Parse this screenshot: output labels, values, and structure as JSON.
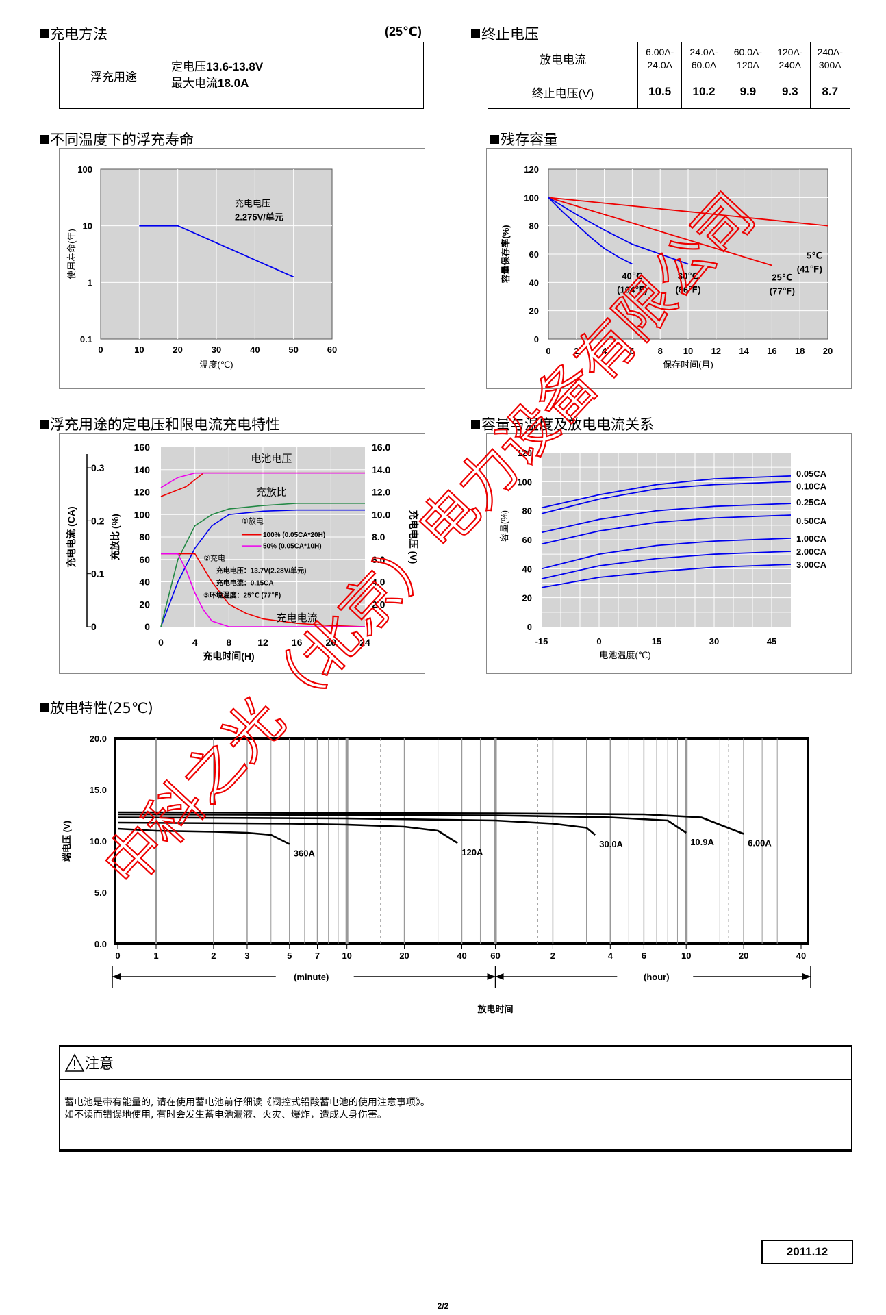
{
  "sections": {
    "charge_method": "充电方法",
    "charge_temp": "(25℃)",
    "end_voltage": "终止电压",
    "float_life": "不同温度下的浮充寿命",
    "residual": "残存容量",
    "charge_char": "浮充用途的定电压和限电流充电特性",
    "cap_temp": "容量与温度及放电电流关系",
    "discharge": "放电特性(25℃)"
  },
  "charge_table": {
    "use": "浮充用途",
    "voltage_label": "定电压",
    "voltage_value": "13.6-13.8V",
    "current_label": "最大电流",
    "current_value": "18.0A"
  },
  "end_voltage_table": {
    "row1_label": "放电电流",
    "row2_label": "终止电压(V)",
    "ranges": [
      [
        "6.00A-",
        "24.0A"
      ],
      [
        "24.0A-",
        "60.0A"
      ],
      [
        "60.0A-",
        "120A"
      ],
      [
        "120A-",
        "240A"
      ],
      [
        "240A-",
        "300A"
      ]
    ],
    "values": [
      "10.5",
      "10.2",
      "9.9",
      "9.3",
      "8.7"
    ]
  },
  "chart_data": [
    {
      "type": "line",
      "id": "float_life",
      "xlabel": "温度(℃)",
      "ylabel": "使用寿命(年)",
      "x_ticks": [
        "0",
        "10",
        "20",
        "30",
        "40",
        "50",
        "60"
      ],
      "y_ticks": [
        "0.1",
        "1",
        "10",
        "100"
      ],
      "xlim": [
        0,
        60
      ],
      "ylim": [
        0.1,
        100
      ],
      "y_scale": "log",
      "annotation": [
        "充电电压",
        "2.275V/单元"
      ],
      "series": [
        {
          "x": [
            10,
            20,
            50
          ],
          "y": [
            10,
            10,
            1.25
          ],
          "color": "#0000ee"
        }
      ]
    },
    {
      "type": "line",
      "id": "residual_capacity",
      "xlabel": "保存时间(月)",
      "ylabel": "容量保存率(%)",
      "x_ticks": [
        "0",
        "2",
        "4",
        "6",
        "8",
        "10",
        "12",
        "14",
        "16",
        "18",
        "20"
      ],
      "y_ticks": [
        "0",
        "20",
        "40",
        "60",
        "80",
        "100",
        "120"
      ],
      "xlim": [
        0,
        20
      ],
      "ylim": [
        0,
        120
      ],
      "series": [
        {
          "name": "5℃",
          "sub": "(41℉)",
          "x": [
            0,
            20
          ],
          "y": [
            100,
            80
          ],
          "color": "#ee0000"
        },
        {
          "name": "25℃",
          "sub": "(77℉)",
          "x": [
            0,
            16
          ],
          "y": [
            100,
            52
          ],
          "color": "#ee0000"
        },
        {
          "name": "30℃",
          "sub": "(86℉)",
          "x": [
            0,
            2,
            4,
            6,
            8,
            10
          ],
          "y": [
            100,
            88,
            77,
            67,
            60,
            53
          ],
          "color": "#0000ee"
        },
        {
          "name": "40℃",
          "sub": "(104℉)",
          "x": [
            0,
            1,
            2,
            3,
            4,
            5,
            6
          ],
          "y": [
            100,
            90,
            81,
            72,
            64,
            58,
            53
          ],
          "color": "#0000ee"
        }
      ]
    },
    {
      "type": "line",
      "id": "charge_characteristics",
      "xlabel": "充电时间(H)",
      "ylabel_left_outer": "充电电流 (CA)",
      "ylabel_left_inner": "充放比 (%)",
      "ylabel_right": "充电电压 (V)",
      "x_ticks": [
        "0",
        "4",
        "8",
        "12",
        "16",
        "20",
        "24"
      ],
      "y_ticks_inner": [
        "0",
        "20",
        "40",
        "60",
        "80",
        "100",
        "120",
        "140",
        "160"
      ],
      "y_ticks_outer": [
        "0",
        "0.1",
        "0.2",
        "0.3"
      ],
      "y_ticks_right": [
        "2.0",
        "4.0",
        "6.0",
        "8.0",
        "10.0",
        "12.0",
        "14.0",
        "16.0"
      ],
      "xlim": [
        0,
        24
      ],
      "ylim": [
        0,
        160
      ],
      "labels": {
        "voltage": "电池电压",
        "ratio": "充放比",
        "current": "充电电流",
        "legend1": "①放电",
        "legend1a": "100% (0.05CA*20H)",
        "legend1b": "50% (0.05CA*10H)",
        "legend2": "②充电",
        "legend2a": "充电电压：13.7V(2.28V/单元)",
        "legend2b": "充电电流：0.15CA",
        "legend3": "③环境温度：25℃ (77℉)"
      },
      "series": [
        {
          "name": "电压(100%)",
          "x": [
            0,
            3,
            5,
            24
          ],
          "y": [
            116,
            125,
            137,
            137
          ],
          "color": "#ee0000"
        },
        {
          "name": "电压(50%)",
          "x": [
            0,
            2,
            4,
            24
          ],
          "y": [
            124,
            133,
            137,
            137
          ],
          "color": "#ee00ee"
        },
        {
          "name": "充放比(100%)",
          "x": [
            0,
            2,
            4,
            6,
            8,
            12,
            16,
            24
          ],
          "y": [
            0,
            40,
            70,
            90,
            100,
            103,
            104,
            104
          ],
          "color": "#0000ee"
        },
        {
          "name": "充放比(50%)",
          "x": [
            0,
            1,
            2,
            4,
            6,
            8,
            12,
            16,
            24
          ],
          "y": [
            0,
            30,
            60,
            90,
            100,
            105,
            108,
            110,
            110
          ],
          "color": "#228844"
        },
        {
          "name": "电流(100%)",
          "x": [
            0,
            4,
            6,
            8,
            10,
            12,
            16,
            20,
            24
          ],
          "y": [
            65,
            65,
            40,
            20,
            12,
            7,
            3,
            1,
            0
          ],
          "color": "#ee0000"
        },
        {
          "name": "电流(50%)",
          "x": [
            0,
            2,
            3,
            4,
            5,
            6,
            8,
            24
          ],
          "y": [
            65,
            65,
            50,
            30,
            15,
            5,
            0,
            0
          ],
          "color": "#ee00ee"
        }
      ]
    },
    {
      "type": "line",
      "id": "capacity_vs_temperature",
      "xlabel": "电池温度(℃)",
      "ylabel": "容量(%)",
      "x_ticks": [
        "-15",
        "0",
        "15",
        "30",
        "45"
      ],
      "y_ticks": [
        "0",
        "20",
        "40",
        "60",
        "80",
        "100",
        "120"
      ],
      "xlim": [
        -15,
        50
      ],
      "ylim": [
        0,
        120
      ],
      "series": [
        {
          "name": "0.05CA",
          "x": [
            -15,
            0,
            15,
            30,
            50
          ],
          "y": [
            82,
            91,
            98,
            102,
            104
          ]
        },
        {
          "name": "0.10CA",
          "x": [
            -15,
            0,
            15,
            30,
            50
          ],
          "y": [
            78,
            88,
            95,
            98,
            100
          ]
        },
        {
          "name": "0.25CA",
          "x": [
            -15,
            0,
            15,
            30,
            50
          ],
          "y": [
            65,
            74,
            80,
            83,
            85
          ]
        },
        {
          "name": "0.50CA",
          "x": [
            -15,
            0,
            15,
            30,
            50
          ],
          "y": [
            57,
            66,
            72,
            75,
            77
          ]
        },
        {
          "name": "1.00CA",
          "x": [
            -15,
            0,
            15,
            30,
            50
          ],
          "y": [
            40,
            50,
            56,
            59,
            61
          ]
        },
        {
          "name": "2.00CA",
          "x": [
            -15,
            0,
            15,
            30,
            50
          ],
          "y": [
            33,
            42,
            47,
            50,
            52
          ]
        },
        {
          "name": "3.00CA",
          "x": [
            -15,
            0,
            15,
            30,
            50
          ],
          "y": [
            27,
            34,
            38,
            41,
            43
          ]
        }
      ]
    },
    {
      "type": "line",
      "id": "discharge_characteristics",
      "xlabel": "放电时间",
      "ylabel": "端电压 (V)",
      "unit_minute": "(minute)",
      "unit_hour": "(hour)",
      "x_ticks": [
        "0",
        "1",
        "2",
        "3",
        "5",
        "7",
        "10",
        "20",
        "40",
        "60",
        "2",
        "4",
        "6",
        "10",
        "20",
        "40"
      ],
      "y_ticks": [
        "0.0",
        "5.0",
        "10.0",
        "15.0",
        "20.0"
      ],
      "ylim": [
        0,
        20
      ],
      "series": [
        {
          "name": "360A",
          "minutes": [
            0,
            1,
            2,
            3,
            4,
            5
          ],
          "y": [
            11.2,
            11.0,
            10.9,
            10.8,
            10.6,
            9.7
          ]
        },
        {
          "name": "120A",
          "minutes": [
            0,
            5,
            10,
            20,
            30,
            38
          ],
          "y": [
            11.8,
            11.7,
            11.6,
            11.4,
            11.0,
            9.8
          ]
        },
        {
          "name": "30.0A",
          "minutes": [
            0,
            10,
            60,
            120,
            180,
            200
          ],
          "y": [
            12.3,
            12.2,
            12.0,
            11.7,
            11.3,
            10.6
          ]
        },
        {
          "name": "10.9A",
          "minutes": [
            0,
            60,
            240,
            480,
            600
          ],
          "y": [
            12.6,
            12.5,
            12.3,
            12.0,
            10.8
          ]
        },
        {
          "name": "6.00A",
          "minutes": [
            0,
            60,
            360,
            720,
            1200
          ],
          "y": [
            12.8,
            12.7,
            12.6,
            12.3,
            10.7
          ]
        }
      ]
    }
  ],
  "notice": {
    "title": "注意",
    "line1": "蓄电池是带有能量的, 请在使用蓄电池前仔细读《阀控式铅酸蓄电池的使用注意事项》。",
    "line2": "如不读而错误地使用, 有时会发生蓄电池漏液、火灾、爆炸，造成人身伤害。"
  },
  "date": "2011.12",
  "page": "2/2",
  "watermark": "中科之光（北京）电力设备有限公司",
  "colors": {
    "plot_bg": "#d4d4d4",
    "grid": "#ffffff",
    "blue": "#0000ee",
    "red": "#ee0000",
    "watermark": "#ee0000"
  }
}
